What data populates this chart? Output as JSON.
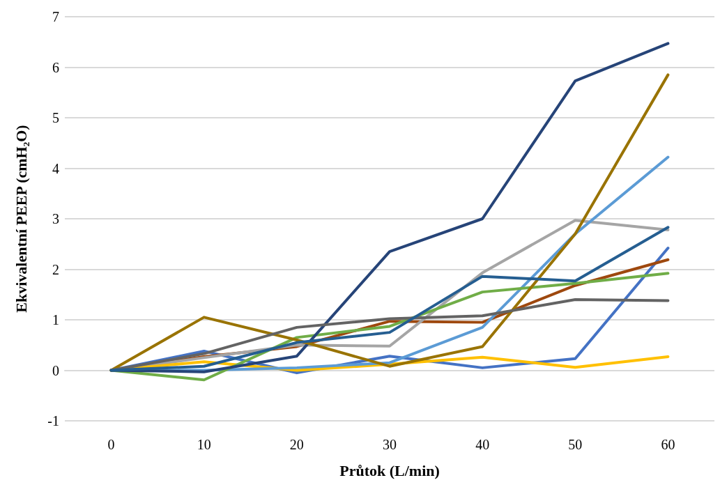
{
  "chart_data": {
    "type": "line",
    "xlabel": "Průtok (L/min)",
    "ylabel": "Ekvivalentní PEEP (cmH₂O)",
    "categories": [
      "0",
      "10",
      "20",
      "30",
      "40",
      "50",
      "60"
    ],
    "ylim": [
      -1,
      7
    ],
    "yticks": [
      -1,
      0,
      1,
      2,
      3,
      4,
      5,
      6,
      7
    ],
    "grid": "y",
    "marker": "none",
    "line_style": "solid",
    "series": [
      {
        "color": "#4472c4",
        "values": [
          0,
          0.38,
          -0.05,
          0.28,
          0.05,
          0.23,
          2.42
        ]
      },
      {
        "color": "#9e480e",
        "values": [
          0,
          0.27,
          0.47,
          0.97,
          0.95,
          1.68,
          2.19
        ]
      },
      {
        "color": "#a5a5a5",
        "values": [
          0,
          0.25,
          0.5,
          0.48,
          1.93,
          2.97,
          2.78
        ]
      },
      {
        "color": "#ffc000",
        "values": [
          0,
          0.17,
          0.0,
          0.12,
          0.26,
          0.06,
          0.27
        ]
      },
      {
        "color": "#5b9bd5",
        "values": [
          0,
          0.0,
          0.05,
          0.15,
          0.85,
          2.7,
          4.22
        ]
      },
      {
        "color": "#70ad47",
        "values": [
          0,
          -0.19,
          0.65,
          0.87,
          1.55,
          1.72,
          1.92
        ]
      },
      {
        "color": "#264478",
        "values": [
          0,
          -0.03,
          0.28,
          2.35,
          3.0,
          5.73,
          6.47
        ]
      },
      {
        "color": "#997300",
        "values": [
          0,
          1.05,
          0.6,
          0.08,
          0.47,
          2.7,
          5.85
        ]
      },
      {
        "color": "#636363",
        "values": [
          0,
          0.33,
          0.85,
          1.02,
          1.08,
          1.4,
          1.38
        ]
      },
      {
        "color": "#255e91",
        "values": [
          0,
          0.08,
          0.55,
          0.75,
          1.86,
          1.77,
          2.83
        ]
      }
    ]
  }
}
